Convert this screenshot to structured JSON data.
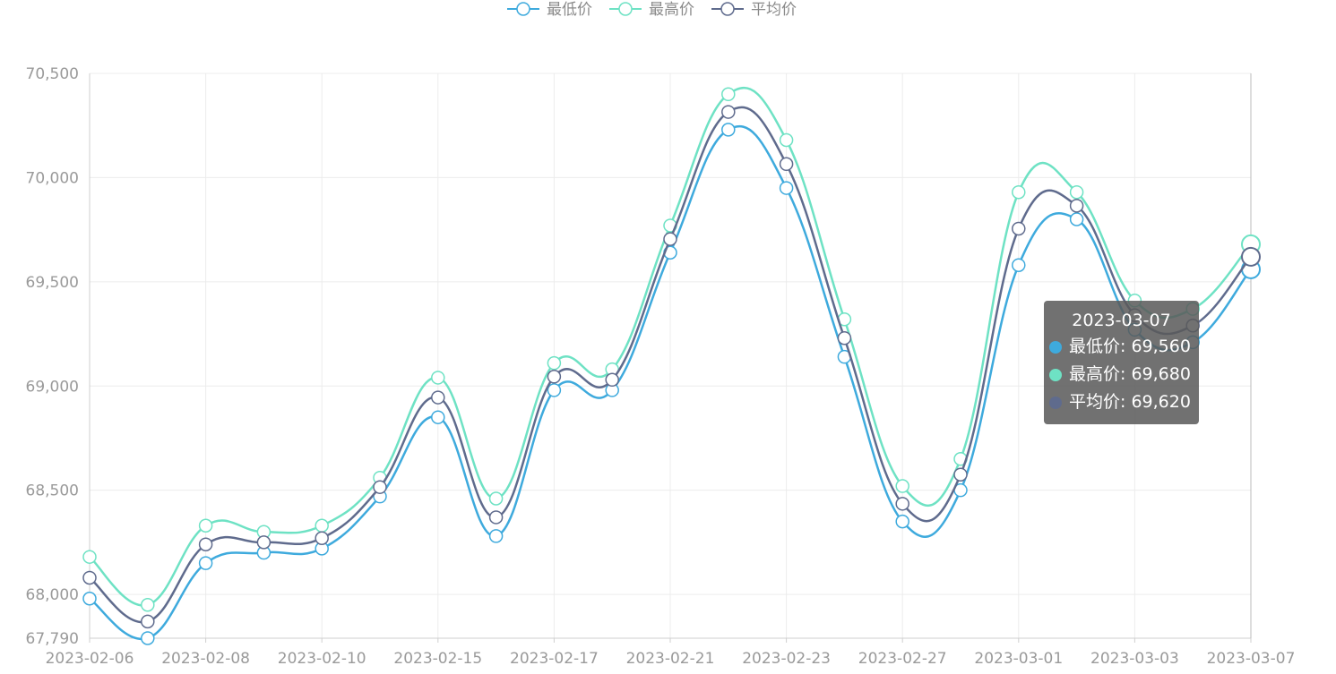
{
  "chart_data": {
    "type": "line",
    "smooth": true,
    "x": [
      "2023-02-06",
      "2023-02-07",
      "2023-02-08",
      "2023-02-09",
      "2023-02-10",
      "2023-02-13",
      "2023-02-15",
      "2023-02-16",
      "2023-02-17",
      "2023-02-20",
      "2023-02-21",
      "2023-02-22",
      "2023-02-23",
      "2023-02-24",
      "2023-02-27",
      "2023-02-28",
      "2023-03-01",
      "2023-03-02",
      "2023-03-03",
      "2023-03-06",
      "2023-03-07"
    ],
    "x_tick_labels": [
      "2023-02-06",
      "2023-02-08",
      "2023-02-10",
      "2023-02-15",
      "2023-02-17",
      "2023-02-21",
      "2023-02-23",
      "2023-02-27",
      "2023-03-01",
      "2023-03-03",
      "2023-03-07"
    ],
    "y_ticks": [
      67790,
      68000,
      68500,
      69000,
      69500,
      70000,
      70500
    ],
    "y_tick_labels": [
      "67,790",
      "68,000",
      "68,500",
      "69,000",
      "69,500",
      "70,000",
      "70,500"
    ],
    "ylim": [
      67790,
      70500
    ],
    "grid": true,
    "legend_position": "top-center",
    "series": [
      {
        "name": "最低价",
        "color": "#3eaadd",
        "values": [
          67980,
          67790,
          68150,
          68200,
          68220,
          68470,
          68850,
          68280,
          68980,
          68980,
          69640,
          70230,
          69950,
          69140,
          68350,
          68500,
          69580,
          69800,
          69270,
          69210,
          69560
        ]
      },
      {
        "name": "最高价",
        "color": "#6ee2c4",
        "values": [
          68180,
          67950,
          68330,
          68300,
          68330,
          68560,
          69040,
          68460,
          69110,
          69080,
          69770,
          70400,
          70180,
          69320,
          68520,
          68650,
          69930,
          69930,
          69410,
          69370,
          69680
        ]
      },
      {
        "name": "平均价",
        "color": "#5f6b8d",
        "values": [
          68080,
          67870,
          68240,
          68250,
          68270,
          68515,
          68945,
          68370,
          69045,
          69030,
          69705,
          70315,
          70065,
          69230,
          68435,
          68575,
          69755,
          69865,
          69340,
          69290,
          69620
        ]
      }
    ]
  },
  "tooltip": {
    "title": "2023-03-07",
    "rows": [
      {
        "text": "最低价: 69,560",
        "color": "#3eaadd"
      },
      {
        "text": "最高价: 69,680",
        "color": "#6ee2c4"
      },
      {
        "text": "平均价: 69,620",
        "color": "#5f6b8d"
      }
    ]
  }
}
